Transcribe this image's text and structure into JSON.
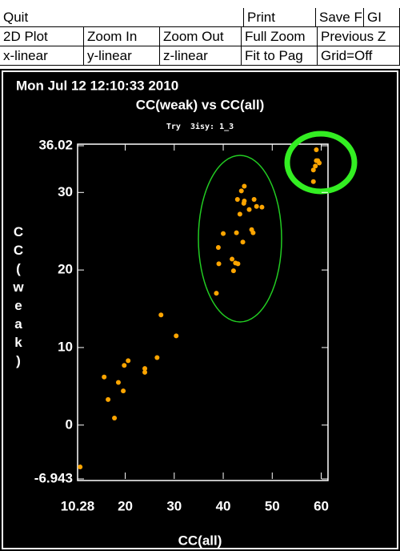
{
  "toolbar": {
    "rows": [
      [
        "Quit",
        "Print",
        "Save F",
        "GI"
      ],
      [
        "2D Plot",
        "Zoom In",
        "Zoom Out",
        "Full Zoom",
        "Previous Z"
      ],
      [
        "x-linear",
        "y-linear",
        "z-linear",
        "Fit to Pag",
        "Grid=Off"
      ]
    ]
  },
  "chart_data": {
    "type": "scatter",
    "date": "Mon Jul 12 12:10:33 2010",
    "title": "CC(weak) vs CC(all)",
    "subtitle": "Try  3isy: 1_3",
    "x_label": "CC(all)",
    "y_label": "CC(weak)",
    "color": "#ffa500",
    "xlim": [
      10.28,
      61.38
    ],
    "ylim": [
      -6.943,
      36.02
    ],
    "xticks": [
      10.28,
      20,
      30,
      40,
      50,
      60
    ],
    "yticks": [
      -6.943,
      0,
      10,
      20,
      30,
      36.02
    ],
    "x": [
      10.8,
      15.7,
      16.5,
      17.8,
      18.6,
      19.6,
      19.8,
      20.6,
      24.0,
      24.0,
      26.5,
      27.3,
      30.4,
      38.6,
      39.1,
      39.0,
      40.0,
      41.8,
      42.1,
      42.5,
      43.0,
      42.7,
      44.0,
      43.4,
      42.9,
      43.7,
      44.3,
      44.2,
      44.3,
      45.3,
      45.8,
      46.1,
      46.3,
      46.8,
      47.9,
      58.4,
      58.4,
      58.8,
      59.0,
      59.3,
      59.6,
      59.0
    ],
    "values": [
      -5.4,
      6.2,
      3.3,
      0.9,
      5.5,
      4.4,
      7.7,
      8.3,
      6.8,
      7.3,
      8.7,
      14.2,
      11.5,
      17.0,
      20.8,
      22.9,
      24.7,
      21.4,
      19.9,
      20.9,
      20.8,
      24.8,
      23.6,
      27.2,
      29.1,
      30.2,
      30.8,
      28.6,
      28.9,
      27.8,
      25.2,
      24.8,
      29.1,
      28.2,
      28.1,
      31.4,
      32.9,
      33.4,
      34.1,
      34.1,
      33.8,
      35.5
    ]
  }
}
